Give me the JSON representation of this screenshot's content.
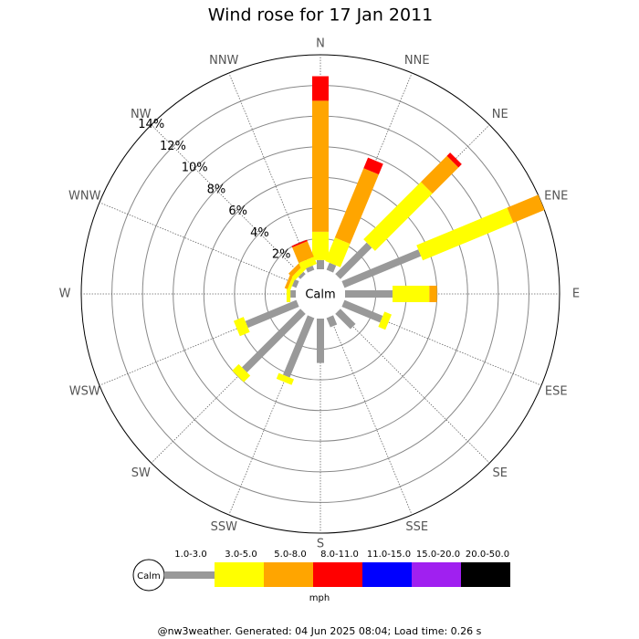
{
  "chart_data": {
    "type": "windrose",
    "title": "Wind rose for 17 Jan 2011",
    "directions": [
      "N",
      "NNE",
      "NE",
      "ENE",
      "E",
      "ESE",
      "SE",
      "SSE",
      "S",
      "SSW",
      "SW",
      "WSW",
      "W",
      "WNW",
      "NW",
      "NNW"
    ],
    "series": [
      {
        "name": "1.0-3.0",
        "color": "#999999",
        "values": [
          0.6,
          0.5,
          2.9,
          5.4,
          3.1,
          2.7,
          1.4,
          0.65,
          2.9,
          4.2,
          5.4,
          3.6,
          0.35,
          0.3,
          0.2,
          0.3
        ]
      },
      {
        "name": "3.0-5.0",
        "color": "#ffff00",
        "values": [
          1.85,
          1.65,
          5.3,
          6.4,
          2.4,
          0.5,
          0,
          0,
          0,
          0.4,
          0.6,
          0.7,
          0.25,
          0.2,
          0.3,
          0.5
        ]
      },
      {
        "name": "5.0-8.0",
        "color": "#ffa500",
        "values": [
          8.55,
          4.9,
          2.4,
          2.2,
          0.5,
          0,
          0,
          0,
          0,
          0,
          0,
          0,
          0,
          0.2,
          0.3,
          1.1
        ]
      },
      {
        "name": "8.0-11.0",
        "color": "#ff0000",
        "values": [
          1.6,
          0.75,
          0.3,
          0,
          0,
          0,
          0,
          0,
          0,
          0,
          0,
          0,
          0,
          0,
          0,
          0.1
        ]
      },
      {
        "name": "11.0-15.0",
        "color": "#0000ff",
        "values": [
          0,
          0,
          0,
          0,
          0,
          0,
          0,
          0,
          0,
          0,
          0,
          0,
          0,
          0,
          0,
          0
        ]
      },
      {
        "name": "15.0-20.0",
        "color": "#a020f0",
        "values": [
          0,
          0,
          0,
          0,
          0,
          0,
          0,
          0,
          0,
          0,
          0,
          0,
          0,
          0,
          0,
          0
        ]
      },
      {
        "name": "20.0-50.0",
        "color": "#000000",
        "values": [
          0,
          0,
          0,
          0,
          0,
          0,
          0,
          0,
          0,
          0,
          0,
          0,
          0,
          0,
          0,
          0
        ]
      }
    ],
    "rlim": [
      0,
      14
    ],
    "rticks": [
      {
        "value": 2,
        "label": "2%"
      },
      {
        "value": 4,
        "label": "4%"
      },
      {
        "value": 6,
        "label": "6%"
      },
      {
        "value": 8,
        "label": "8%"
      },
      {
        "value": 10,
        "label": "10%"
      },
      {
        "value": 12,
        "label": "12%"
      },
      {
        "value": 14,
        "label": "14%"
      }
    ],
    "center_label": "Calm",
    "unit_label": "mph",
    "footer": "@nw3weather. Generated: 04 Jun 2025 08:04; Load time: 0.26 s"
  }
}
